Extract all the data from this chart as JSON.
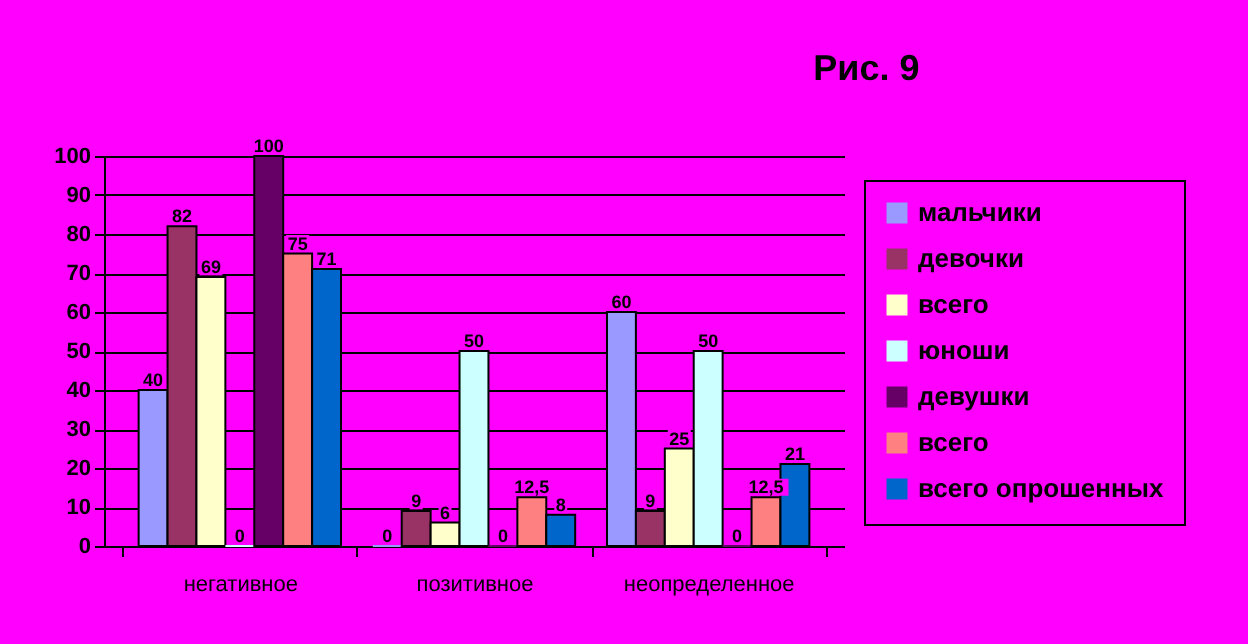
{
  "chart_data": {
    "type": "bar",
    "title": "Рис. 9",
    "categories": [
      "негативное",
      "позитивное",
      "неопределенное"
    ],
    "series": [
      {
        "name": "мальчики",
        "color": "#9999ff",
        "values": [
          40,
          0,
          60
        ],
        "value_labels": [
          "40",
          "0",
          "60"
        ]
      },
      {
        "name": "девочки",
        "color": "#993366",
        "values": [
          82,
          9,
          9
        ],
        "value_labels": [
          "82",
          "9",
          "9"
        ]
      },
      {
        "name": "всего",
        "color": "#ffffcc",
        "values": [
          69,
          6,
          25
        ],
        "value_labels": [
          "69",
          "6",
          "25"
        ]
      },
      {
        "name": "юноши",
        "color": "#ccffff",
        "values": [
          0,
          50,
          50
        ],
        "value_labels": [
          "0",
          "50",
          "50"
        ]
      },
      {
        "name": "девушки",
        "color": "#660066",
        "values": [
          100,
          0,
          0
        ],
        "value_labels": [
          "100",
          "0",
          "0"
        ]
      },
      {
        "name": "всего",
        "color": "#ff8080",
        "values": [
          75,
          12.5,
          12.5
        ],
        "value_labels": [
          "75",
          "12,5",
          "12,5"
        ]
      },
      {
        "name": "всего опрошенных",
        "color": "#0066cc",
        "values": [
          71,
          8,
          21
        ],
        "value_labels": [
          "71",
          "8",
          "21"
        ]
      }
    ],
    "ylim": [
      0,
      100
    ],
    "yticks": [
      0,
      10,
      20,
      30,
      40,
      50,
      60,
      70,
      80,
      90,
      100
    ],
    "grid": "y",
    "legend": "right"
  }
}
